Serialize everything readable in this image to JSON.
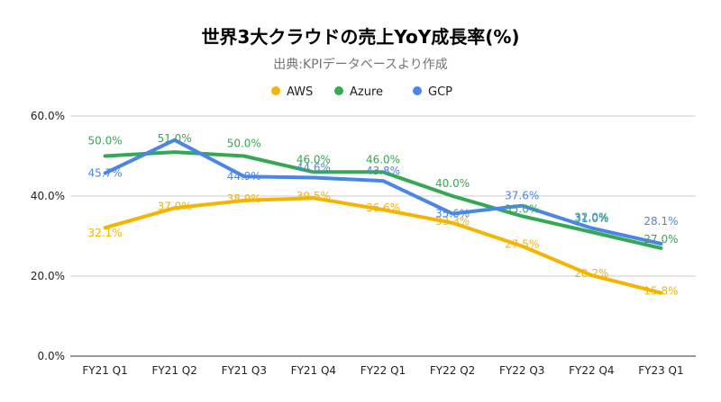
{
  "chart_data": {
    "type": "line",
    "title": "世界3大クラウドの売上YoY成長率(%)",
    "subtitle": "出典:KPIデータベースより作成",
    "categories": [
      "FY21 Q1",
      "FY21 Q2",
      "FY21 Q3",
      "FY21 Q4",
      "FY22 Q1",
      "FY22 Q2",
      "FY22 Q3",
      "FY22 Q4",
      "FY23 Q1"
    ],
    "y_ticks": [
      "0.0%",
      "20.0%",
      "40.0%",
      "60.0%"
    ],
    "ylim": [
      0,
      60
    ],
    "grid": true,
    "legend_position": "top",
    "series": [
      {
        "name": "AWS",
        "color": "#f4b400",
        "values": [
          32.1,
          37.0,
          38.9,
          39.5,
          36.6,
          33.3,
          27.5,
          20.2,
          15.8
        ],
        "labels": [
          "32.1%",
          "37.0%",
          "38.9%",
          "39.5%",
          "36.6%",
          "33.3%",
          "27.5%",
          "20.2%",
          "15.8%"
        ]
      },
      {
        "name": "Azure",
        "color": "#34a853",
        "values": [
          50.0,
          51.0,
          50.0,
          46.0,
          46.0,
          40.0,
          35.0,
          31.0,
          27.0
        ],
        "labels": [
          "50.0%",
          "51.0%",
          "50.0%",
          "46.0%",
          "46.0%",
          "40.0%",
          "35.0%",
          "31.0%",
          "27.0%"
        ]
      },
      {
        "name": "GCP",
        "color": "#4a86e8",
        "values": [
          45.7,
          54.0,
          44.9,
          44.6,
          43.8,
          35.6,
          37.6,
          32.0,
          28.1
        ],
        "labels": [
          "45.7%",
          "",
          "44.9%",
          "44.6%",
          "43.8%",
          "35.6%",
          "37.6%",
          "32.0%",
          "28.1%"
        ]
      }
    ]
  }
}
